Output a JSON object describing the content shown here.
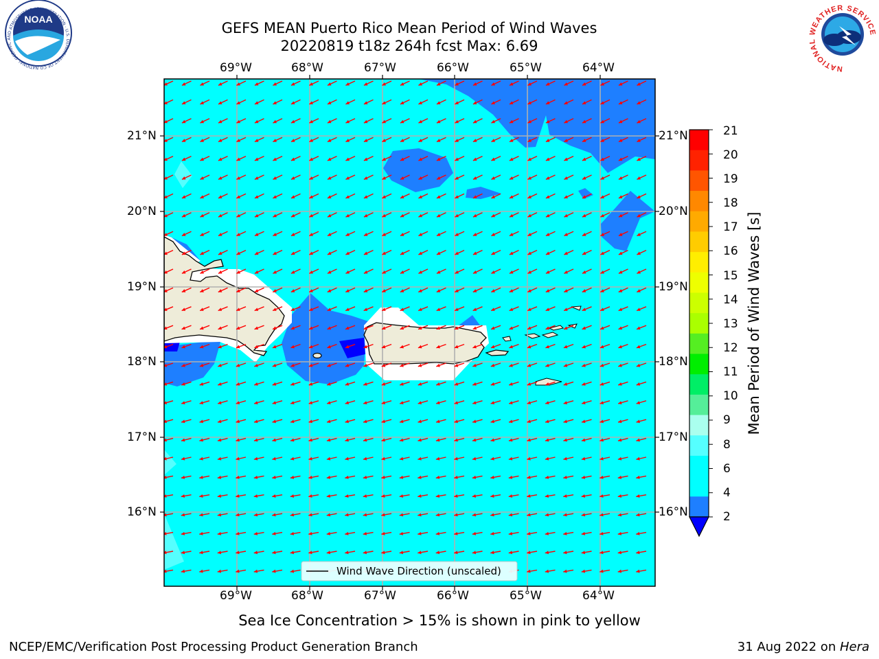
{
  "title": {
    "line1": "GEFS MEAN Puerto Rico Mean Period of Wind Waves",
    "line2": "20220819 t18z 264h fcst   Max: 6.69"
  },
  "logos": {
    "noaa_text": "NOAA",
    "noaa_ring": "NATIONAL OCEANIC AND ATMOSPHERIC ADMINISTRATION · U.S. DEPARTMENT OF COMMERCE",
    "nws_ring": "NATIONAL WEATHER SERVICE"
  },
  "map": {
    "lon_ticks": [
      "69°W",
      "68°W",
      "67°W",
      "66°W",
      "65°W",
      "64°W"
    ],
    "lat_ticks": [
      "21°N",
      "20°N",
      "19°N",
      "18°N",
      "17°N",
      "16°N"
    ],
    "legend_label": "Wind Wave Direction (unscaled)",
    "arrow_color": "#ff0000",
    "background_fill": "#00ffff",
    "low_period_fill": "#1e7fff",
    "lowest_period_fill": "#0000ff",
    "land_fill": "#eeecd9"
  },
  "colorbar": {
    "label": "Mean Period of Wind Waves [s]",
    "tick_labels": [
      "21",
      "20",
      "19",
      "18",
      "17",
      "16",
      "15",
      "14",
      "13",
      "12",
      "11",
      "10",
      "9",
      "8",
      "6",
      "4",
      "2"
    ],
    "colors_top_to_bottom": [
      "#ff0000",
      "#ff2200",
      "#ff5500",
      "#ff8800",
      "#ffaa00",
      "#ffcc00",
      "#ffee00",
      "#eeff00",
      "#ccff00",
      "#aaff00",
      "#55ee22",
      "#00ee00",
      "#00ee66",
      "#55ee99",
      "#aaffee",
      "#55ffff",
      "#00ffff",
      "#00ffff",
      "#1e7fff"
    ],
    "extend_color": "#0000ff"
  },
  "notes": {
    "sea_ice": "Sea Ice Concentration > 15% is shown in pink to yellow"
  },
  "footer": {
    "left": "NCEP/EMC/Verification Post Processing Product Generation Branch",
    "right_prefix": "31 Aug 2022 on ",
    "right_machine": "Hera"
  }
}
